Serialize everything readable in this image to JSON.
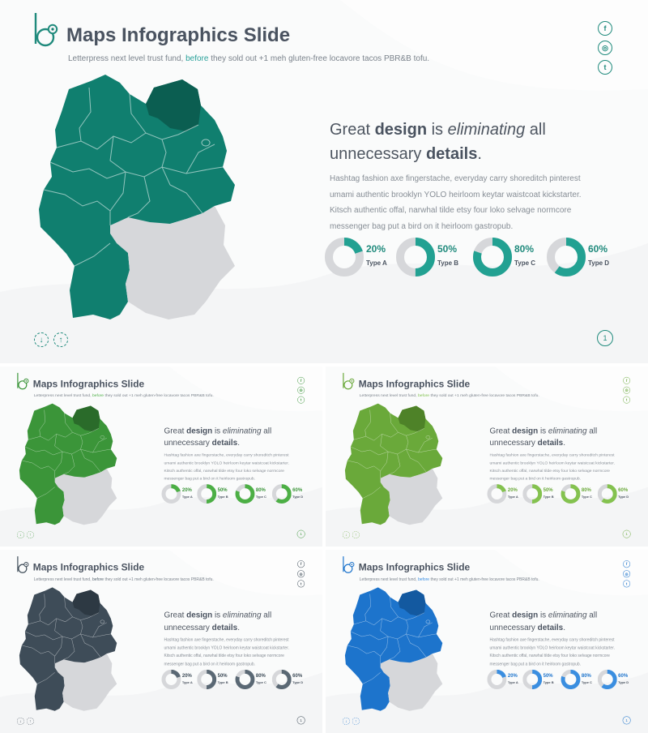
{
  "slide": {
    "title": "Maps Infographics Slide",
    "subtitle_before": "Letterpress next level trust fund, ",
    "subtitle_highlight": "before",
    "subtitle_after": " they sold out +1 meh gluten-free locavore tacos PBR&B tofu.",
    "headline": {
      "p1": "Great ",
      "b1": "design",
      "p2": " is ",
      "i1": "eliminating",
      "p3": " all",
      "p4": "unnecessary ",
      "b2": "details",
      "p5": "."
    },
    "body": "Hashtag fashion axe fingerstache, everyday carry shoreditch pinterest umami authentic brooklyn YOLO heirloom keytar waistcoat kickstarter. Kitsch authentic offal, narwhal tilde etsy four loko selvage normcore messenger bag put a bird on it heirloom gastropub.",
    "stats": [
      {
        "pct": "20%",
        "label": "Type A",
        "value": 0.2
      },
      {
        "pct": "50%",
        "label": "Type B",
        "value": 0.5
      },
      {
        "pct": "80%",
        "label": "Type C",
        "value": 0.8
      },
      {
        "pct": "60%",
        "label": "Type D",
        "value": 0.6
      }
    ],
    "social_icons": [
      "facebook-icon",
      "instagram-icon",
      "twitter-icon"
    ],
    "social_glyphs": [
      "f",
      "◎",
      "t"
    ],
    "nav_down": "↓",
    "nav_up": "↑",
    "page_number": "1"
  },
  "themes": [
    {
      "name": "teal",
      "main": "#107f6f",
      "dark": "#0b5e51",
      "accent": "#1f8a7c",
      "highlight": "#2aa19a",
      "light": "#22a192"
    },
    {
      "name": "green",
      "main": "#3b9539",
      "dark": "#2a6b2a",
      "accent": "#3b9539",
      "highlight": "#4caf45",
      "light": "#4caf45"
    },
    {
      "name": "lime",
      "main": "#6aa93a",
      "dark": "#4e8228",
      "accent": "#6aa93a",
      "highlight": "#7bbf46",
      "light": "#84c24f"
    },
    {
      "name": "slate",
      "main": "#3e4c58",
      "dark": "#2d3943",
      "accent": "#3e4c58",
      "highlight": "#55636f",
      "light": "#5a6874"
    },
    {
      "name": "blue",
      "main": "#1d74cc",
      "dark": "#1359a0",
      "accent": "#1d74cc",
      "highlight": "#3a8ee0",
      "light": "#3a8ee0"
    }
  ],
  "map_neutral": "#d6d7da"
}
